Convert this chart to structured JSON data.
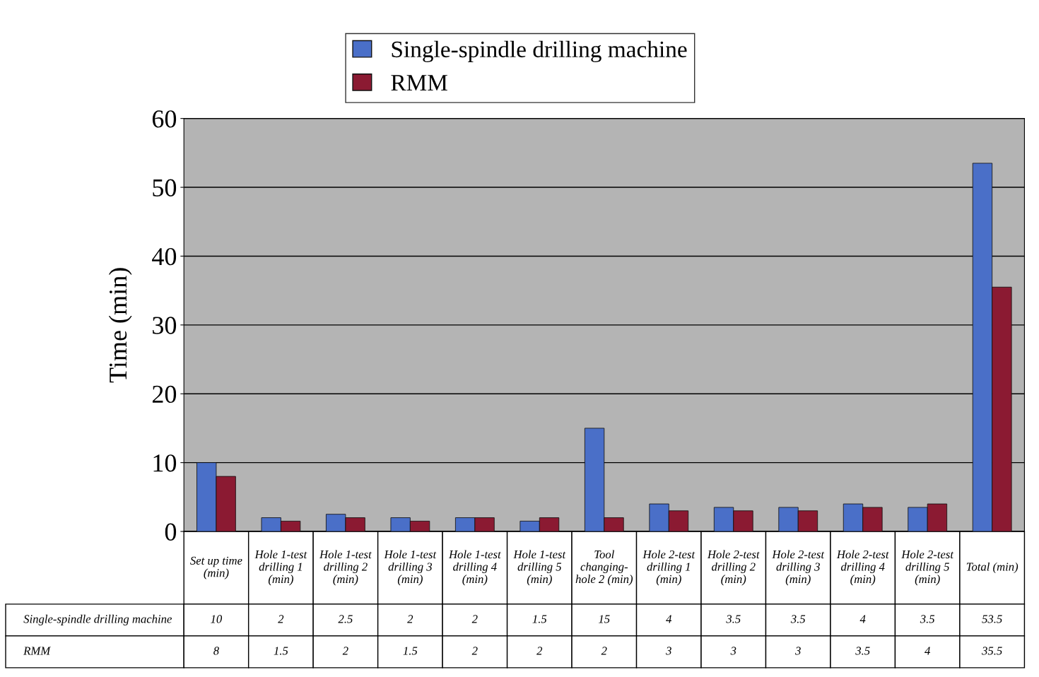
{
  "chart_data": {
    "type": "bar",
    "ylabel": "Time (min)",
    "categories": [
      "Set up time\n(min)",
      "Hole 1-test\ndrilling 1\n(min)",
      "Hole 1-test\ndrilling 2\n(min)",
      "Hole 1-test\ndrilling 3\n(min)",
      "Hole 1-test\ndrilling 4\n(min)",
      "Hole 1-test\ndrilling 5\n(min)",
      "Tool\nchanging-\nhole 2 (min)",
      "Hole 2-test\ndrilling 1\n(min)",
      "Hole 2-test\ndrilling 2\n(min)",
      "Hole 2-test\ndrilling 3\n(min)",
      "Hole 2-test\ndrilling 4\n(min)",
      "Hole 2-test\ndrilling 5\n(min)",
      "Total (min)"
    ],
    "series": [
      {
        "name": "Single-spindle drilling machine",
        "color": "#4a6fc8",
        "values": [
          10,
          2,
          2.5,
          2,
          2,
          1.5,
          15,
          4,
          3.5,
          3.5,
          4,
          3.5,
          53.5
        ]
      },
      {
        "name": "RMM",
        "color": "#8b1a32",
        "values": [
          8,
          1.5,
          2,
          1.5,
          2,
          2,
          2,
          3,
          3,
          3,
          3.5,
          4,
          35.5
        ]
      }
    ],
    "ylim": [
      0,
      60
    ],
    "yticks": [
      0,
      10,
      20,
      30,
      40,
      50,
      60
    ],
    "grid": "y",
    "legend": "top",
    "data_labels": true
  }
}
